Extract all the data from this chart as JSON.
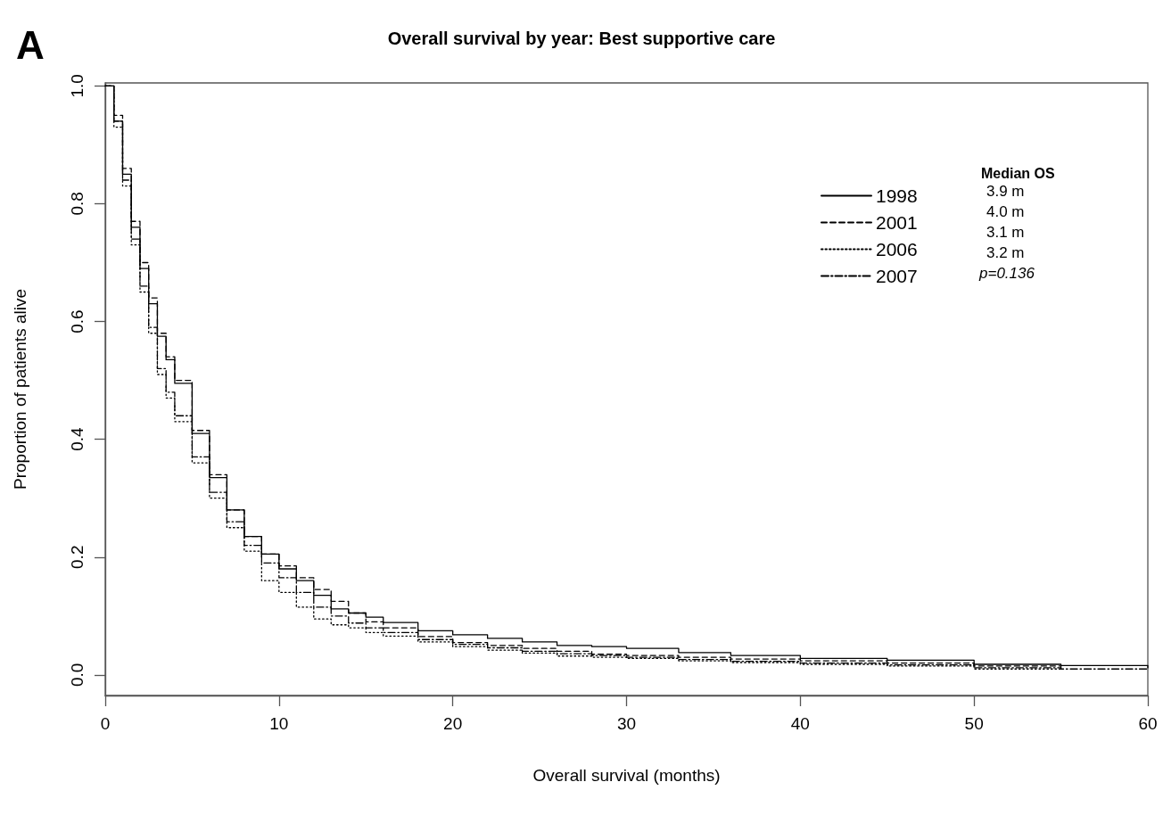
{
  "chart_data": {
    "type": "step",
    "title": "Overall survival by year: Best supportive care",
    "xlabel": "Overall survival (months)",
    "ylabel": "Proportion of patients alive",
    "legend_title": "Median OS",
    "annotations": [
      "A",
      "3.9 m",
      "4.0 m",
      "3.1 m",
      "3.2 m",
      "p=0.136"
    ],
    "xlim": [
      0,
      60
    ],
    "xticks": [
      0,
      10,
      20,
      30,
      40,
      50,
      60
    ],
    "ylim": [
      -0.035,
      1.005
    ],
    "yticks": [
      {
        "value": 0,
        "label": "0.0"
      },
      0.2,
      0.4,
      0.6,
      0.8,
      {
        "value": 1,
        "label": "1.0"
      }
    ],
    "grid": false,
    "legend": "top right",
    "marker": "none",
    "series": [
      {
        "name": "1998",
        "color": "#000000",
        "line_style": "solid",
        "x": [
          0,
          0.5,
          1,
          1.5,
          2,
          2.5,
          3,
          3.5,
          4,
          5,
          6,
          7,
          8,
          9,
          10,
          11,
          12,
          13,
          14,
          15,
          16,
          18,
          20,
          22,
          24,
          26,
          28,
          30,
          33,
          36,
          40,
          45,
          50,
          55,
          60
        ],
        "values": [
          1,
          0.94,
          0.85,
          0.76,
          0.69,
          0.63,
          0.575,
          0.535,
          0.495,
          0.41,
          0.335,
          0.28,
          0.235,
          0.205,
          0.18,
          0.16,
          0.135,
          0.112,
          0.105,
          0.098,
          0.089,
          0.075,
          0.068,
          0.062,
          0.056,
          0.05,
          0.048,
          0.045,
          0.038,
          0.033,
          0.028,
          0.025,
          0.018,
          0.016,
          0.012
        ]
      },
      {
        "name": "2001",
        "color": "#000000",
        "line_style": "dashed",
        "x": [
          0,
          0.5,
          1,
          1.5,
          2,
          2.5,
          3,
          3.5,
          4,
          5,
          6,
          7,
          8,
          9,
          10,
          11,
          12,
          13,
          14,
          15,
          16,
          18,
          20,
          22,
          24,
          26,
          28,
          30,
          33,
          36,
          40,
          45,
          50,
          55
        ],
        "values": [
          1,
          0.95,
          0.86,
          0.77,
          0.7,
          0.64,
          0.58,
          0.54,
          0.5,
          0.415,
          0.34,
          0.28,
          0.235,
          0.205,
          0.185,
          0.165,
          0.145,
          0.125,
          0.105,
          0.09,
          0.08,
          0.065,
          0.055,
          0.05,
          0.045,
          0.04,
          0.035,
          0.033,
          0.03,
          0.027,
          0.024,
          0.02,
          0.015,
          0.012
        ]
      },
      {
        "name": "2006",
        "color": "#000000",
        "line_style": "dotted",
        "x": [
          0,
          0.5,
          1,
          1.5,
          2,
          2.5,
          3,
          3.5,
          4,
          5,
          6,
          7,
          8,
          9,
          10,
          11,
          12,
          13,
          14,
          15,
          16,
          18,
          20,
          22,
          24,
          26,
          28,
          30,
          33,
          36,
          40,
          45,
          50,
          55
        ],
        "values": [
          1,
          0.93,
          0.83,
          0.73,
          0.65,
          0.58,
          0.51,
          0.47,
          0.43,
          0.36,
          0.3,
          0.25,
          0.21,
          0.16,
          0.14,
          0.115,
          0.095,
          0.085,
          0.08,
          0.072,
          0.066,
          0.056,
          0.048,
          0.042,
          0.037,
          0.032,
          0.03,
          0.028,
          0.024,
          0.021,
          0.018,
          0.015,
          0.01,
          0.008
        ]
      },
      {
        "name": "2007",
        "color": "#000000",
        "line_style": "dashdot",
        "x": [
          0,
          0.5,
          1,
          1.5,
          2,
          2.5,
          3,
          3.5,
          4,
          5,
          6,
          7,
          8,
          9,
          10,
          11,
          12,
          13,
          14,
          15,
          16,
          18,
          20,
          22,
          24,
          26,
          28,
          30,
          33,
          36,
          40,
          45,
          50,
          55,
          60
        ],
        "values": [
          1,
          0.94,
          0.84,
          0.74,
          0.66,
          0.59,
          0.52,
          0.48,
          0.44,
          0.37,
          0.31,
          0.26,
          0.22,
          0.19,
          0.165,
          0.14,
          0.115,
          0.1,
          0.088,
          0.08,
          0.072,
          0.06,
          0.052,
          0.046,
          0.04,
          0.036,
          0.033,
          0.03,
          0.026,
          0.023,
          0.02,
          0.017,
          0.012,
          0.01,
          0.009
        ]
      }
    ]
  }
}
